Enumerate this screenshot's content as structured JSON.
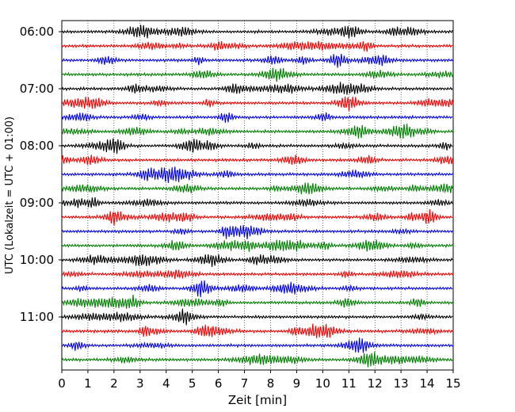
{
  "chart_data": {
    "type": "line",
    "title": "",
    "xlabel": "Zeit  [min]",
    "ylabel": "UTC (Lokalzeit = UTC + 01:00)",
    "xlim": [
      0,
      15
    ],
    "x_ticks": [
      0,
      1,
      2,
      3,
      4,
      5,
      6,
      7,
      8,
      9,
      10,
      11,
      12,
      13,
      14,
      15
    ],
    "x_tick_labels": [
      "0",
      "1",
      "2",
      "3",
      "4",
      "5",
      "6",
      "7",
      "8",
      "9",
      "10",
      "11",
      "12",
      "13",
      "14",
      "15"
    ],
    "y_tick_labels": [
      "06:00",
      "07:00",
      "08:00",
      "09:00",
      "10:00",
      "11:00"
    ],
    "traces_per_hour": 4,
    "trace_interval_minutes": 15,
    "trace_start_times": [
      "06:00",
      "06:15",
      "06:30",
      "06:45",
      "07:00",
      "07:15",
      "07:30",
      "07:45",
      "08:00",
      "08:15",
      "08:30",
      "08:45",
      "09:00",
      "09:15",
      "09:30",
      "09:45",
      "10:00",
      "10:15",
      "10:30",
      "10:45",
      "11:00",
      "11:15",
      "11:30",
      "11:45"
    ],
    "trace_colors": [
      "#000000",
      "#ff0000",
      "#0000ff",
      "#008000"
    ],
    "grid": "vertical dotted at each minute",
    "legend": "none"
  }
}
